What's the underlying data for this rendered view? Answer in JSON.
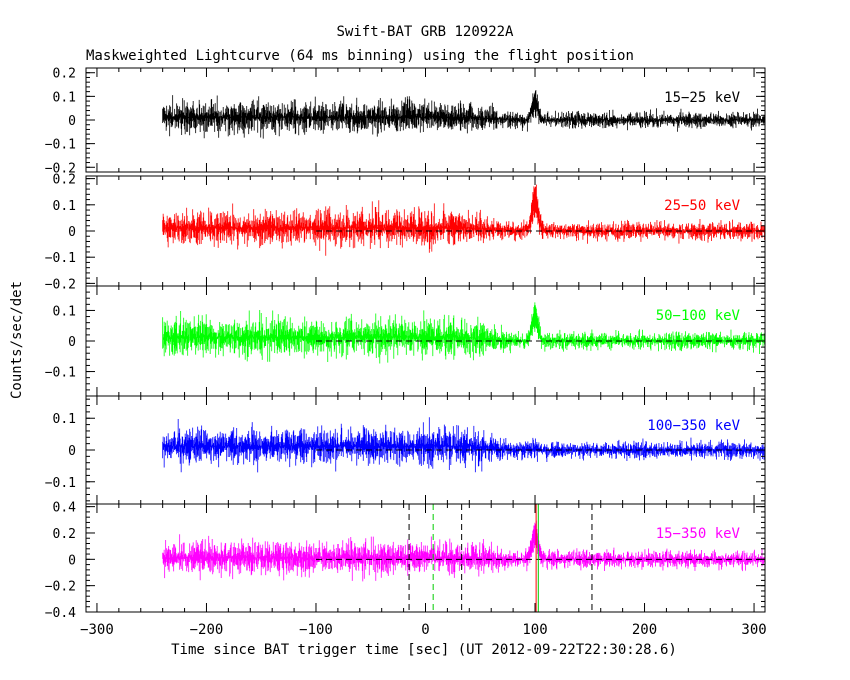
{
  "chart_data": {
    "type": "line",
    "title": "Swift-BAT GRB 120922A",
    "subtitle": "Maskweighted Lightcurve (64 ms binning) using the flight position",
    "xlabel": "Time since BAT trigger time [sec] (UT 2012-09-22T22:30:28.6)",
    "ylabel": "Counts/sec/det",
    "xlim": [
      -310,
      310
    ],
    "x_ticks": [
      -300,
      -200,
      -100,
      0,
      100,
      200,
      300
    ],
    "data_x_range": [
      -240,
      310
    ],
    "bin_seconds": 0.064,
    "grid": false,
    "panels": [
      {
        "name": "15-25 keV",
        "label": "15−25 keV",
        "color": "#000000",
        "ylim": [
          -0.22,
          0.22
        ],
        "y_ticks": [
          -0.2,
          -0.1,
          0,
          0.1,
          0.2
        ],
        "y_tick_labels": [
          "−0.2",
          "−0.1",
          "0",
          "0.1",
          "0.2"
        ],
        "zero_line": false,
        "noise_amplitude": {
          "pre_trigger": 0.07,
          "post_trigger": 0.035
        },
        "peaks": [
          {
            "t": 100,
            "value": 0.1
          }
        ]
      },
      {
        "name": "25-50 keV",
        "label": "25−50 keV",
        "color": "#ff0000",
        "ylim": [
          -0.21,
          0.21
        ],
        "y_ticks": [
          -0.2,
          -0.1,
          0,
          0.1,
          0.2
        ],
        "y_tick_labels": [
          "−0.2",
          "−0.1",
          "0",
          "0.1",
          "0.2"
        ],
        "zero_line": true,
        "noise_amplitude": {
          "pre_trigger": 0.07,
          "post_trigger": 0.035
        },
        "peaks": [
          {
            "t": 100,
            "value": 0.15
          }
        ]
      },
      {
        "name": "50-100 keV",
        "label": "50−100 keV",
        "color": "#00ff00",
        "ylim": [
          -0.18,
          0.18
        ],
        "y_ticks": [
          -0.1,
          0,
          0.1
        ],
        "y_tick_labels": [
          "−0.1",
          "0",
          "0.1"
        ],
        "zero_line": true,
        "noise_amplitude": {
          "pre_trigger": 0.065,
          "post_trigger": 0.03
        },
        "peaks": [
          {
            "t": 100,
            "value": 0.1
          }
        ]
      },
      {
        "name": "100-350 keV",
        "label": "100−350 keV",
        "color": "#0000ff",
        "ylim": [
          -0.17,
          0.17
        ],
        "y_ticks": [
          -0.1,
          0,
          0.1
        ],
        "y_tick_labels": [
          "−0.1",
          "0",
          "0.1"
        ],
        "zero_line": true,
        "noise_amplitude": {
          "pre_trigger": 0.06,
          "post_trigger": 0.028
        },
        "peaks": []
      },
      {
        "name": "15-350 keV",
        "label": "15−350 keV",
        "color": "#ff00ff",
        "ylim": [
          -0.4,
          0.42
        ],
        "y_ticks": [
          -0.4,
          -0.2,
          0,
          0.2,
          0.4
        ],
        "y_tick_labels": [
          "−0.4",
          "−0.2",
          "0",
          "0.2",
          "0.4"
        ],
        "zero_line": true,
        "noise_amplitude": {
          "pre_trigger": 0.13,
          "post_trigger": 0.07
        },
        "peaks": [
          {
            "t": 100,
            "value": 0.25
          }
        ]
      }
    ],
    "markers": [
      {
        "t": -15,
        "color": "#000000",
        "style": "dashed"
      },
      {
        "t": 7,
        "color": "#00cc00",
        "style": "dashed"
      },
      {
        "t": 33,
        "color": "#000000",
        "style": "dashed"
      },
      {
        "t": 101,
        "color": "#ff0000",
        "style": "solid"
      },
      {
        "t": 103,
        "color": "#00cc00",
        "style": "solid"
      },
      {
        "t": 152,
        "color": "#000000",
        "style": "dashed"
      }
    ]
  }
}
